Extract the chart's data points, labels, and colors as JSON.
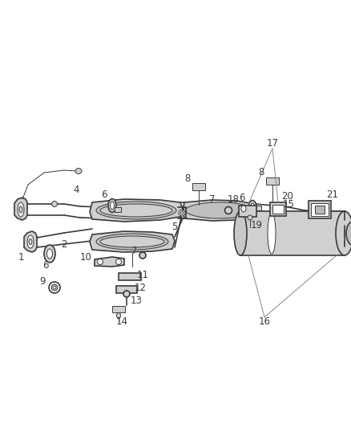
{
  "bg_color": "#ffffff",
  "line_color": "#3a3a3a",
  "fill_light": "#d0d0d0",
  "fill_medium": "#b8b8b8",
  "fig_width": 4.38,
  "fig_height": 5.33,
  "dpi": 100
}
